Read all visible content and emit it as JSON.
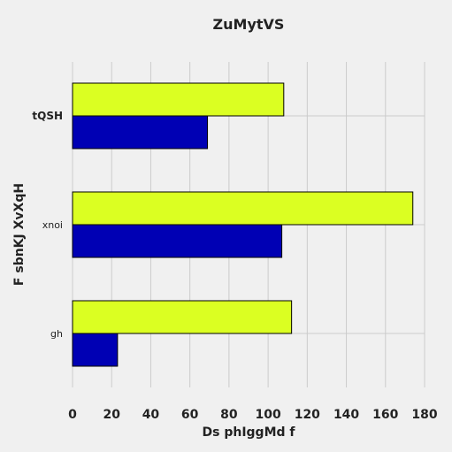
{
  "chart_data": {
    "type": "bar",
    "orientation": "horizontal",
    "title": "ZuMytVS",
    "xlabel": "Ds phIggMd f",
    "ylabel": "F sbnKJ XvXqH",
    "categories": [
      "tQSH",
      "xnoi",
      "gh"
    ],
    "series": [
      {
        "color": "#dbff22",
        "values": [
          108,
          174,
          112
        ]
      },
      {
        "color": "#0000b4",
        "values": [
          69,
          107,
          23
        ]
      }
    ],
    "xlim": [
      0,
      180
    ],
    "xticks": [
      0,
      20,
      40,
      60,
      80,
      100,
      120,
      140,
      160,
      180
    ],
    "grid": true
  }
}
